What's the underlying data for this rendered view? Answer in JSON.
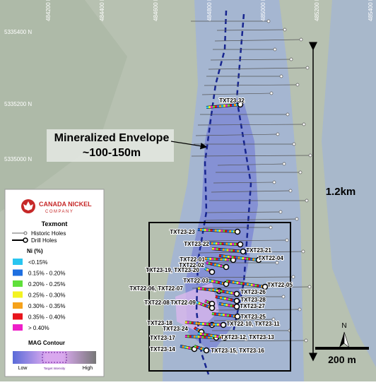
{
  "map": {
    "eastings": [
      "484200 E",
      "484400 E",
      "484600 E",
      "484800 E",
      "485000 E",
      "485200 E",
      "485400 E"
    ],
    "northings": [
      "5335400 N",
      "5335200 N",
      "5335000 N"
    ],
    "annotation": [
      "Mineralized Envelope",
      "~100-150m"
    ],
    "length_label": "1.2km",
    "scale_label": "200 m",
    "north_label": "N",
    "holes": [
      "TXT23-32",
      "TXT23-23",
      "TXT23-22",
      "TXT23-21",
      "TXT22-01",
      "TXT22-04",
      "TXT22-02",
      "TXT23-19, TXT23-20",
      "TXT22-03",
      "TXT22-05",
      "TXT22-06, TXT22-07",
      "TXT23-26",
      "TXT23-28",
      "TXT22-08",
      "TXT22-09",
      "TXT23-27",
      "TXT23-25",
      "TXT23-18",
      "TXT22-10, TXT23-11",
      "TXT23-24",
      "TXT23-17",
      "TXT23-12, TXT23-13",
      "TXT23-14",
      "TXT23-15, TXT23-16"
    ]
  },
  "legend": {
    "company": "CANADA NICKEL",
    "company_sub": "COMPANY",
    "project": "Texmont",
    "historic": "Historic Holes",
    "drill": "Drill Holes",
    "ni_title": "Ni (%)",
    "bins": [
      {
        "label": "<0.15%",
        "color": "#29c5f0"
      },
      {
        "label": "0.15% - 0.20%",
        "color": "#1e6fe0"
      },
      {
        "label": "0.20% - 0.25%",
        "color": "#5fe03a"
      },
      {
        "label": "0.25% - 0.30%",
        "color": "#f3f321"
      },
      {
        "label": "0.30% - 0.35%",
        "color": "#f5a21b"
      },
      {
        "label": "0.35% - 0.40%",
        "color": "#e8141c"
      },
      {
        "label": "> 0.40%",
        "color": "#ee1fc9"
      }
    ],
    "mag_title": "MAG Contour",
    "mag_low": "Low",
    "mag_target": "Target Intensity",
    "mag_high": "High"
  }
}
